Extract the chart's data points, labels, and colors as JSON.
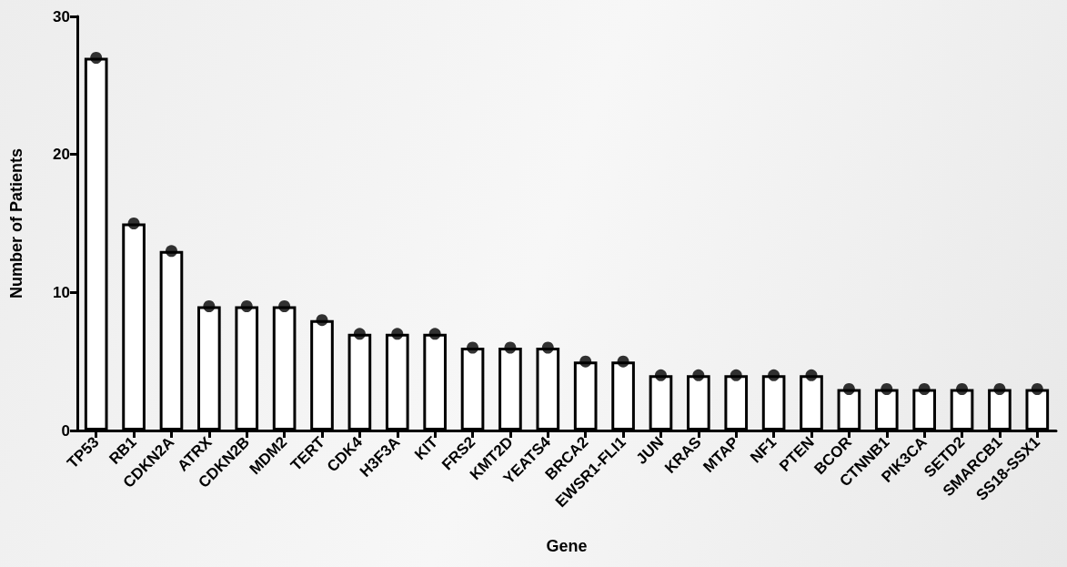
{
  "chart_data": {
    "type": "bar",
    "xlabel": "Gene",
    "ylabel": "Number of Patients",
    "categories": [
      "TP53",
      "RB1",
      "CDKN2A",
      "ATRX",
      "CDKN2B",
      "MDM2",
      "TERT",
      "CDK4",
      "H3F3A",
      "KIT",
      "FRS2",
      "KMT2D",
      "YEATS4",
      "BRCA2",
      "EWSR1-FLI1",
      "JUN",
      "KRAS",
      "MTAP",
      "NF1",
      "PTEN",
      "BCOR",
      "CTNNB1",
      "PIK3CA",
      "SETD2",
      "SMARCB1",
      "SS18-SSX1"
    ],
    "series": [
      {
        "color": "#ffffff",
        "values": [
          27,
          15,
          13,
          9,
          9,
          9,
          8,
          7,
          7,
          7,
          6,
          6,
          6,
          5,
          5,
          4,
          4,
          4,
          4,
          4,
          3,
          3,
          3,
          3,
          3,
          3
        ]
      },
      {
        "type": "scatter",
        "color": "#000000",
        "x": [
          "TP53",
          "RB1",
          "CDKN2A",
          "ATRX",
          "CDKN2B",
          "MDM2",
          "TERT",
          "CDK4",
          "H3F3A",
          "KIT",
          "FRS2",
          "KMT2D",
          "YEATS4",
          "BRCA2",
          "EWSR1-FLI1",
          "JUN",
          "KRAS",
          "MTAP",
          "NF1",
          "PTEN",
          "BCOR",
          "CTNNB1",
          "PIK3CA",
          "SETD2",
          "SMARCB1",
          "SS18-SSX1"
        ],
        "values": [
          27,
          15,
          13,
          9,
          9,
          9,
          8,
          7,
          7,
          7,
          6,
          6,
          6,
          5,
          5,
          4,
          4,
          4,
          4,
          4,
          3,
          3,
          3,
          3,
          3,
          3
        ]
      }
    ],
    "ylim": [
      0,
      30
    ],
    "yticks": [
      0,
      10,
      20,
      30
    ],
    "grid": false,
    "marker": "circle"
  }
}
